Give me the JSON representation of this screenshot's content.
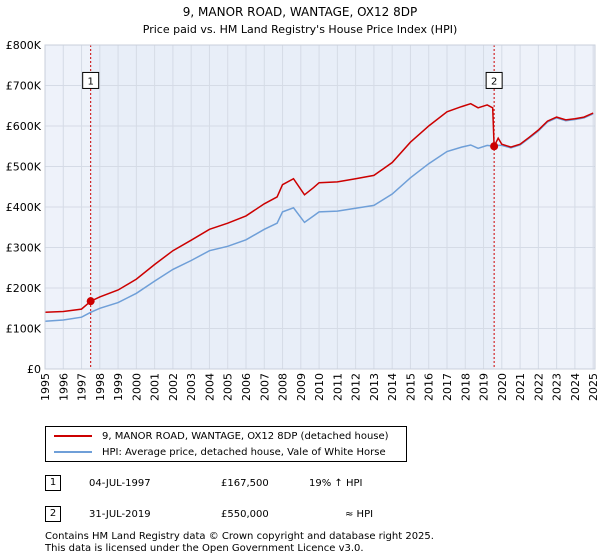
{
  "chart_data": {
    "type": "line",
    "title": "9, MANOR ROAD, WANTAGE, OX12 8DP",
    "subtitle": "Price paid vs. HM Land Registry's House Price Index (HPI)",
    "xlim": [
      1995,
      2025.1
    ],
    "ylim": [
      0,
      800000
    ],
    "x_ticks": [
      "1995",
      "1996",
      "1997",
      "1998",
      "1999",
      "2000",
      "2001",
      "2002",
      "2003",
      "2004",
      "2005",
      "2006",
      "2007",
      "2008",
      "2009",
      "2010",
      "2011",
      "2012",
      "2013",
      "2014",
      "2015",
      "2016",
      "2017",
      "2018",
      "2019",
      "2020",
      "2021",
      "2022",
      "2023",
      "2024",
      "2025"
    ],
    "y_ticks": [
      {
        "value": 0,
        "label": "£0"
      },
      {
        "value": 100000,
        "label": "£100K"
      },
      {
        "value": 200000,
        "label": "£200K"
      },
      {
        "value": 300000,
        "label": "£300K"
      },
      {
        "value": 400000,
        "label": "£400K"
      },
      {
        "value": 500000,
        "label": "£500K"
      },
      {
        "value": 600000,
        "label": "£600K"
      },
      {
        "value": 700000,
        "label": "£700K"
      },
      {
        "value": 800000,
        "label": "£800K"
      }
    ],
    "grid": true,
    "shaded_band": {
      "from": 1997.5,
      "to": 2019.58,
      "color": "#e8eef8"
    },
    "series": [
      {
        "name": "9, MANOR ROAD, WANTAGE, OX12 8DP (detached house)",
        "color": "#cc0000",
        "points": [
          [
            1995,
            140000
          ],
          [
            1996,
            142000
          ],
          [
            1997,
            148000
          ],
          [
            1997.5,
            167500
          ],
          [
            1998,
            178000
          ],
          [
            1999,
            195000
          ],
          [
            2000,
            222000
          ],
          [
            2001,
            258000
          ],
          [
            2002,
            292000
          ],
          [
            2003,
            318000
          ],
          [
            2004,
            345000
          ],
          [
            2005,
            360000
          ],
          [
            2006,
            378000
          ],
          [
            2007,
            408000
          ],
          [
            2007.7,
            425000
          ],
          [
            2008,
            455000
          ],
          [
            2008.6,
            470000
          ],
          [
            2009.2,
            430000
          ],
          [
            2009.7,
            448000
          ],
          [
            2010,
            460000
          ],
          [
            2011,
            462000
          ],
          [
            2012,
            470000
          ],
          [
            2013,
            478000
          ],
          [
            2014,
            510000
          ],
          [
            2015,
            560000
          ],
          [
            2016,
            600000
          ],
          [
            2017,
            635000
          ],
          [
            2017.8,
            648000
          ],
          [
            2018.3,
            655000
          ],
          [
            2018.7,
            645000
          ],
          [
            2019.2,
            652000
          ],
          [
            2019.5,
            645000
          ],
          [
            2019.58,
            550000
          ],
          [
            2019.8,
            570000
          ],
          [
            2020,
            555000
          ],
          [
            2020.5,
            548000
          ],
          [
            2021,
            555000
          ],
          [
            2021.5,
            572000
          ],
          [
            2022,
            590000
          ],
          [
            2022.5,
            612000
          ],
          [
            2023,
            622000
          ],
          [
            2023.5,
            615000
          ],
          [
            2024,
            618000
          ],
          [
            2024.5,
            622000
          ],
          [
            2025,
            632000
          ]
        ]
      },
      {
        "name": "HPI: Average price, detached house, Vale of White Horse",
        "color": "#6f9fd8",
        "points": [
          [
            1995,
            118000
          ],
          [
            1996,
            121000
          ],
          [
            1997,
            128000
          ],
          [
            1997.5,
            140000
          ],
          [
            1998,
            150000
          ],
          [
            1999,
            164000
          ],
          [
            2000,
            187000
          ],
          [
            2001,
            217000
          ],
          [
            2002,
            246000
          ],
          [
            2003,
            268000
          ],
          [
            2004,
            292000
          ],
          [
            2005,
            303000
          ],
          [
            2006,
            319000
          ],
          [
            2007,
            345000
          ],
          [
            2007.7,
            360000
          ],
          [
            2008,
            388000
          ],
          [
            2008.6,
            398000
          ],
          [
            2009.2,
            362000
          ],
          [
            2009.7,
            378000
          ],
          [
            2010,
            388000
          ],
          [
            2011,
            390000
          ],
          [
            2012,
            397000
          ],
          [
            2013,
            404000
          ],
          [
            2014,
            432000
          ],
          [
            2015,
            472000
          ],
          [
            2016,
            507000
          ],
          [
            2017,
            537000
          ],
          [
            2017.8,
            548000
          ],
          [
            2018.3,
            553000
          ],
          [
            2018.7,
            545000
          ],
          [
            2019.2,
            552000
          ],
          [
            2019.58,
            550000
          ],
          [
            2019.8,
            552000
          ],
          [
            2020,
            552000
          ],
          [
            2020.5,
            546000
          ],
          [
            2021,
            553000
          ],
          [
            2021.5,
            570000
          ],
          [
            2022,
            588000
          ],
          [
            2022.5,
            610000
          ],
          [
            2023,
            620000
          ],
          [
            2023.5,
            613000
          ],
          [
            2024,
            616000
          ],
          [
            2024.5,
            620000
          ],
          [
            2025,
            630000
          ]
        ]
      }
    ],
    "markers": [
      {
        "label": "1",
        "x": 1997.5,
        "y": 167500,
        "box_y": 710000
      },
      {
        "label": "2",
        "x": 2019.58,
        "y": 550000,
        "box_y": 710000
      }
    ]
  },
  "sales": [
    {
      "num": "1",
      "date": "04-JUL-1997",
      "price": "£167,500",
      "relation": "19% ↑ HPI"
    },
    {
      "num": "2",
      "date": "31-JUL-2019",
      "price": "£550,000",
      "relation": "≈ HPI"
    }
  ],
  "footer": {
    "line1": "Contains HM Land Registry data © Crown copyright and database right 2025.",
    "line2": "This data is licensed under the Open Government Licence v3.0."
  }
}
